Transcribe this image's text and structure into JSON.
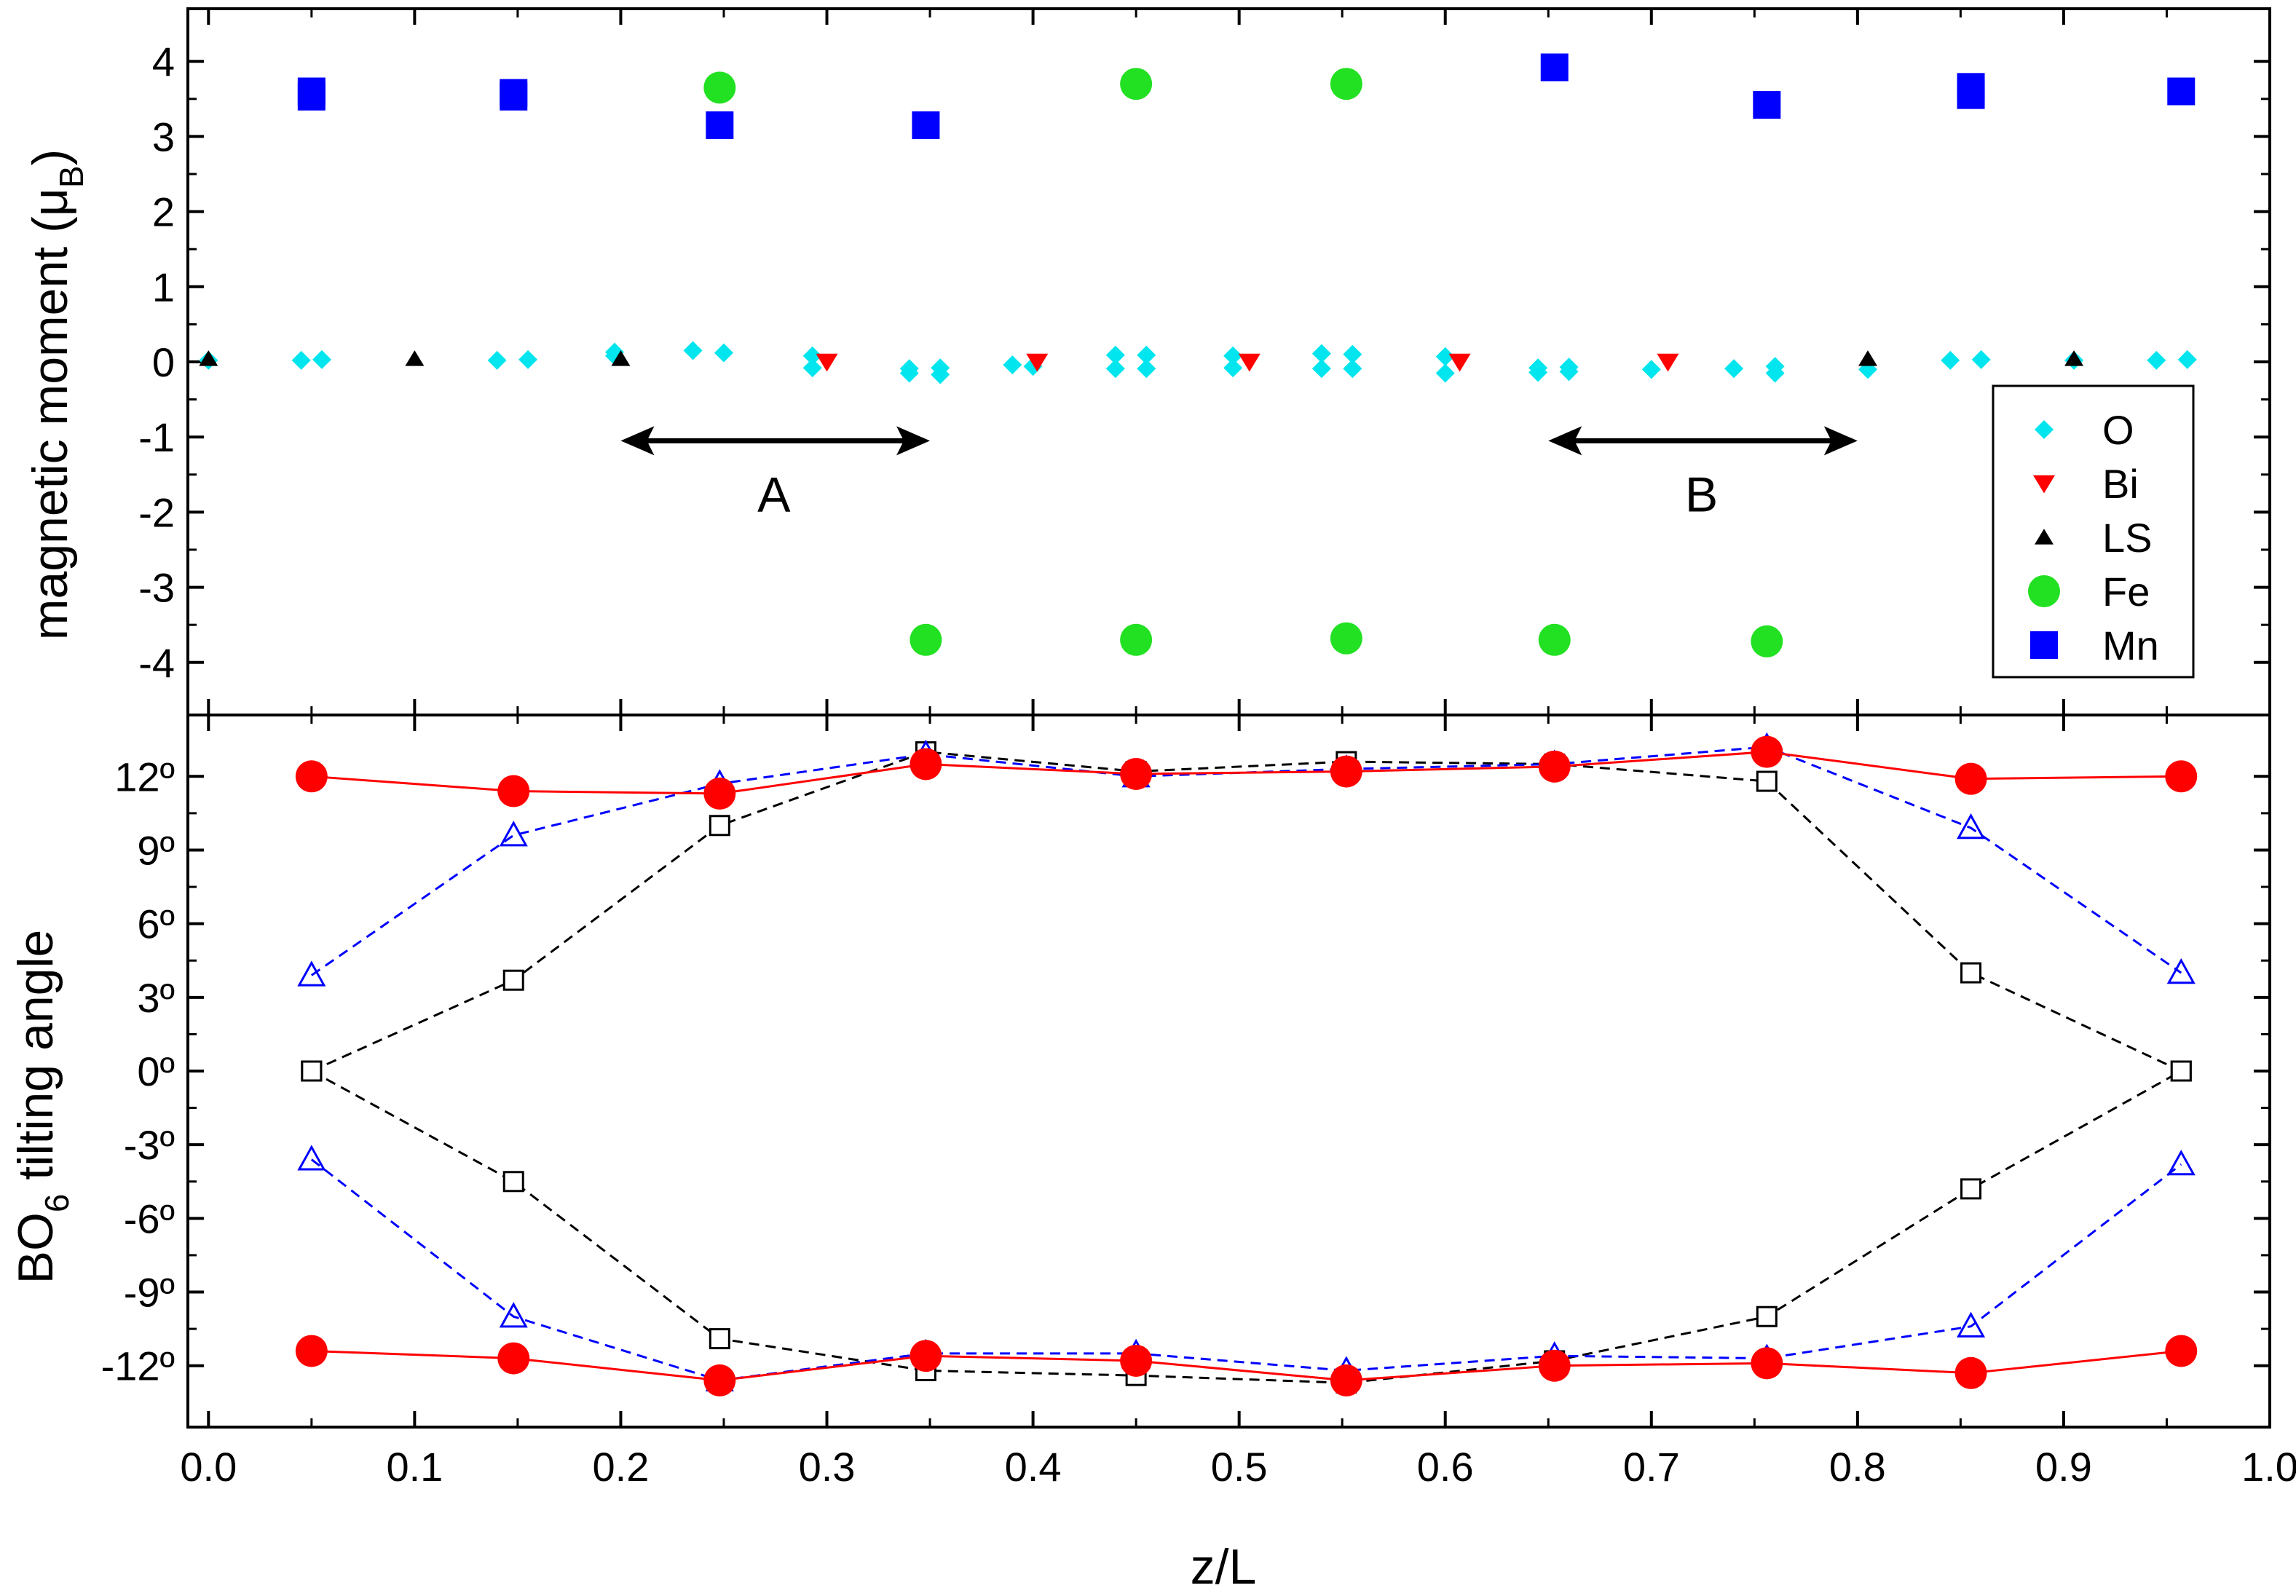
{
  "chart_data": [
    {
      "type": "scatter",
      "panel": "top",
      "ylabel": "magnetic moment (μ",
      "ylabel_sub": "B",
      "ylabel_close": ")",
      "ylim": [
        -4.7,
        4.7
      ],
      "xlim": [
        -0.01,
        1.0
      ],
      "yticks": [
        4,
        3,
        2,
        1,
        0,
        -1,
        -2,
        -3,
        -4
      ],
      "ytick_labels": [
        "4",
        "3",
        "2",
        "1",
        "0",
        "-1",
        "-2",
        "-3",
        "-4"
      ],
      "annotations": [
        {
          "text": "A",
          "arrow_from": 0.2,
          "arrow_to": 0.35,
          "arrow_y": -1.05,
          "label_y": -1.75
        },
        {
          "text": "B",
          "arrow_from": 0.65,
          "arrow_to": 0.8,
          "arrow_y": -1.05,
          "label_y": -1.75
        }
      ],
      "legend": {
        "position": "bottom-right",
        "entries": [
          "O",
          "Bi",
          "LS",
          "Fe",
          "Mn"
        ]
      },
      "series": [
        {
          "name": "O",
          "marker": "diamond",
          "color": "#00e5ee",
          "points": [
            [
              0.0,
              0.02
            ],
            [
              0.045,
              0.02
            ],
            [
              0.055,
              0.03
            ],
            [
              0.14,
              0.02
            ],
            [
              0.155,
              0.03
            ],
            [
              0.197,
              0.13
            ],
            [
              0.197,
              0.08
            ],
            [
              0.235,
              0.15
            ],
            [
              0.25,
              0.12
            ],
            [
              0.293,
              0.08
            ],
            [
              0.293,
              -0.08
            ],
            [
              0.34,
              -0.09
            ],
            [
              0.34,
              -0.15
            ],
            [
              0.355,
              -0.08
            ],
            [
              0.355,
              -0.17
            ],
            [
              0.39,
              -0.04
            ],
            [
              0.4,
              -0.06
            ],
            [
              0.44,
              0.09
            ],
            [
              0.44,
              -0.09
            ],
            [
              0.455,
              0.09
            ],
            [
              0.455,
              -0.09
            ],
            [
              0.497,
              0.08
            ],
            [
              0.497,
              -0.08
            ],
            [
              0.54,
              0.11
            ],
            [
              0.54,
              -0.09
            ],
            [
              0.555,
              0.1
            ],
            [
              0.555,
              -0.09
            ],
            [
              0.6,
              0.07
            ],
            [
              0.6,
              -0.15
            ],
            [
              0.645,
              -0.08
            ],
            [
              0.645,
              -0.14
            ],
            [
              0.66,
              -0.07
            ],
            [
              0.66,
              -0.13
            ],
            [
              0.7,
              -0.1
            ],
            [
              0.74,
              -0.09
            ],
            [
              0.76,
              -0.06
            ],
            [
              0.76,
              -0.15
            ],
            [
              0.805,
              -0.1
            ],
            [
              0.845,
              0.02
            ],
            [
              0.86,
              0.03
            ],
            [
              0.905,
              0.02
            ],
            [
              0.945,
              0.02
            ],
            [
              0.96,
              0.03
            ]
          ]
        },
        {
          "name": "Bi",
          "marker": "triangle-down",
          "color": "#ff0000",
          "points": [
            [
              0.3,
              0.0
            ],
            [
              0.402,
              0.0
            ],
            [
              0.505,
              0.0
            ],
            [
              0.607,
              0.0
            ],
            [
              0.708,
              0.0
            ]
          ]
        },
        {
          "name": "LS",
          "marker": "triangle-up",
          "color": "#000000",
          "points": [
            [
              0.0,
              0.04
            ],
            [
              0.1,
              0.04
            ],
            [
              0.2,
              0.04
            ],
            [
              0.805,
              0.04
            ],
            [
              0.905,
              0.04
            ]
          ]
        },
        {
          "name": "Fe",
          "marker": "circle",
          "color": "#22e022",
          "points": [
            [
              0.248,
              3.65
            ],
            [
              0.45,
              3.7
            ],
            [
              0.552,
              3.7
            ],
            [
              0.348,
              -3.7
            ],
            [
              0.45,
              -3.7
            ],
            [
              0.552,
              -3.68
            ],
            [
              0.653,
              -3.7
            ],
            [
              0.756,
              -3.72
            ]
          ]
        },
        {
          "name": "Mn",
          "marker": "square",
          "color": "#0000ff",
          "points": [
            [
              0.05,
              3.6
            ],
            [
              0.05,
              3.53
            ],
            [
              0.148,
              3.58
            ],
            [
              0.148,
              3.53
            ],
            [
              0.248,
              3.15
            ],
            [
              0.348,
              3.15
            ],
            [
              0.653,
              3.92
            ],
            [
              0.756,
              3.42
            ],
            [
              0.855,
              3.66
            ],
            [
              0.855,
              3.55
            ],
            [
              0.957,
              3.6
            ]
          ]
        }
      ]
    },
    {
      "type": "line",
      "panel": "bottom",
      "xlabel": "z/L",
      "ylabel": "BO",
      "ylabel_sub": "6",
      "ylabel_rest": " tilting angle",
      "ylim": [
        -14.5,
        14.5
      ],
      "xlim": [
        -0.01,
        1.0
      ],
      "xticks": [
        0.0,
        0.1,
        0.2,
        0.3,
        0.4,
        0.5,
        0.6,
        0.7,
        0.8,
        0.9,
        1.0
      ],
      "xtick_labels": [
        "0.0",
        "0.1",
        "0.2",
        "0.3",
        "0.4",
        "0.5",
        "0.6",
        "0.7",
        "0.8",
        "0.9",
        "1.0"
      ],
      "yticks": [
        12,
        9,
        6,
        3,
        0,
        -3,
        -6,
        -9,
        -12
      ],
      "ytick_labels": [
        "12º",
        "9º",
        "6º",
        "3º",
        "0º",
        "-3º",
        "-6º",
        "-9º",
        "-12º"
      ],
      "series": [
        {
          "marker": "square-open",
          "color": "#000000",
          "line": "dashed",
          "x": [
            0.05,
            0.148,
            0.248,
            0.348,
            0.45,
            0.552,
            0.653,
            0.756,
            0.855,
            0.957
          ],
          "values": [
            0.0,
            3.7,
            10.0,
            13.0,
            12.2,
            12.6,
            12.5,
            11.8,
            4.0,
            0.0
          ]
        },
        {
          "marker": "square-open",
          "color": "#000000",
          "line": "dashed",
          "x": [
            0.05,
            0.148,
            0.248,
            0.348,
            0.45,
            0.552,
            0.653,
            0.756,
            0.855,
            0.957
          ],
          "values": [
            0.0,
            -4.5,
            -10.9,
            -12.2,
            -12.4,
            -12.7,
            -11.8,
            -10.0,
            -4.8,
            0.0
          ]
        },
        {
          "marker": "triangle-open",
          "color": "#0000ff",
          "line": "dashed",
          "x": [
            0.05,
            0.148,
            0.248,
            0.348,
            0.45,
            0.552,
            0.653,
            0.756,
            0.855,
            0.957
          ],
          "values": [
            3.9,
            9.6,
            11.7,
            12.9,
            12.0,
            12.3,
            12.5,
            13.2,
            9.9,
            4.0
          ]
        },
        {
          "marker": "triangle-open",
          "color": "#0000ff",
          "line": "dashed",
          "x": [
            0.05,
            0.148,
            0.248,
            0.348,
            0.45,
            0.552,
            0.653,
            0.756,
            0.855,
            0.957
          ],
          "values": [
            -3.6,
            -10.0,
            -12.6,
            -11.5,
            -11.5,
            -12.2,
            -11.6,
            -11.7,
            -10.4,
            -3.8
          ]
        },
        {
          "marker": "circle",
          "color": "#ff0000",
          "line": "solid",
          "x": [
            0.05,
            0.148,
            0.248,
            0.348,
            0.45,
            0.552,
            0.653,
            0.756,
            0.855,
            0.957
          ],
          "values": [
            12.0,
            11.4,
            11.3,
            12.5,
            12.1,
            12.2,
            12.4,
            13.0,
            11.9,
            12.0
          ]
        },
        {
          "marker": "circle",
          "color": "#ff0000",
          "line": "solid",
          "x": [
            0.05,
            0.148,
            0.248,
            0.348,
            0.45,
            0.552,
            0.653,
            0.756,
            0.855,
            0.957
          ],
          "values": [
            -11.4,
            -11.7,
            -12.6,
            -11.6,
            -11.8,
            -12.6,
            -12.0,
            -11.9,
            -12.3,
            -11.4
          ]
        }
      ]
    }
  ]
}
